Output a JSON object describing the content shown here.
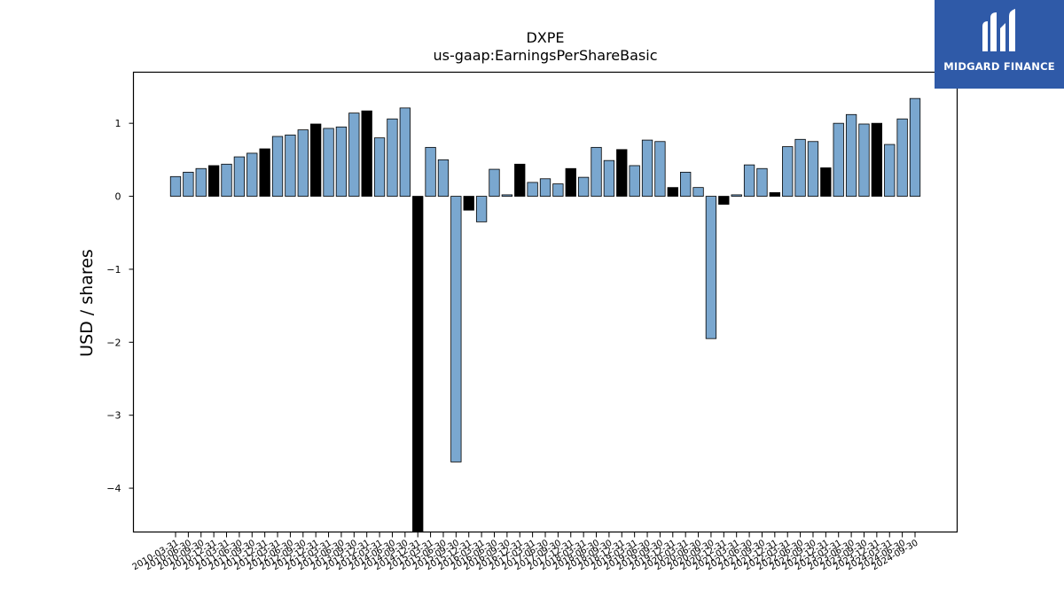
{
  "logo": {
    "text": "MIDGARD FINANCE",
    "icon": "midgard-m-icon",
    "background": "#2f5aa8"
  },
  "chart_data": {
    "type": "bar",
    "title": "DXPE",
    "subtitle": "us-gaap:EarningsPerShareBasic",
    "ylabel": "USD / shares",
    "xlabel": "",
    "ylim": [
      -4.6,
      1.7
    ],
    "yticks": [
      1,
      0,
      -1,
      -2,
      -3,
      -4
    ],
    "grid": false,
    "colors": {
      "quarterly": "#7aa7cf",
      "annual": "#000000",
      "edge": "#000000"
    },
    "categories": [
      "2010-03-31",
      "2010-06-30",
      "2010-09-30",
      "2010-12-31",
      "2011-03-31",
      "2011-06-30",
      "2011-09-30",
      "2011-12-31",
      "2012-03-31",
      "2012-06-30",
      "2012-09-30",
      "2012-12-31",
      "2013-03-31",
      "2013-06-30",
      "2013-09-30",
      "2013-12-31",
      "2014-03-31",
      "2014-06-30",
      "2014-09-30",
      "2014-12-31",
      "2015-03-31",
      "2015-06-30",
      "2015-09-30",
      "2015-12-31",
      "2016-03-31",
      "2016-06-30",
      "2016-09-30",
      "2016-12-31",
      "2017-03-31",
      "2017-06-30",
      "2017-09-30",
      "2017-12-31",
      "2018-03-31",
      "2018-06-30",
      "2018-09-30",
      "2018-12-31",
      "2019-03-31",
      "2019-06-30",
      "2019-09-30",
      "2019-12-31",
      "2020-03-31",
      "2020-06-30",
      "2020-09-30",
      "2020-12-31",
      "2021-03-31",
      "2021-06-30",
      "2021-09-30",
      "2021-12-31",
      "2022-03-31",
      "2022-06-30",
      "2022-09-30",
      "2022-12-31",
      "2023-03-31",
      "2023-06-30",
      "2023-09-30",
      "2023-12-31",
      "2024-03-31",
      "2024-06-30",
      "2024-09-30"
    ],
    "values": [
      0.27,
      0.33,
      0.38,
      0.42,
      0.44,
      0.54,
      0.59,
      0.65,
      0.82,
      0.84,
      0.91,
      0.99,
      0.93,
      0.95,
      1.14,
      1.17,
      0.8,
      1.06,
      1.21,
      -4.6,
      0.67,
      0.5,
      -3.64,
      -0.19,
      -0.35,
      0.37,
      0.02,
      0.44,
      0.19,
      0.24,
      0.17,
      0.38,
      0.26,
      0.67,
      0.49,
      0.64,
      0.42,
      0.77,
      0.75,
      0.12,
      0.33,
      0.12,
      -1.95,
      -0.11,
      0.02,
      0.43,
      0.38,
      0.05,
      0.68,
      0.78,
      0.75,
      0.39,
      1.0,
      1.12,
      0.99,
      1.0,
      0.71,
      1.06,
      1.34
    ],
    "annual_flags": [
      0,
      0,
      0,
      1,
      0,
      0,
      0,
      1,
      0,
      0,
      0,
      1,
      0,
      0,
      0,
      1,
      0,
      0,
      0,
      1,
      0,
      0,
      0,
      1,
      0,
      0,
      0,
      1,
      0,
      0,
      0,
      1,
      0,
      0,
      0,
      1,
      0,
      0,
      0,
      1,
      0,
      0,
      0,
      1,
      0,
      0,
      0,
      1,
      0,
      0,
      0,
      1,
      0,
      0,
      0,
      1,
      0,
      0,
      0
    ]
  }
}
